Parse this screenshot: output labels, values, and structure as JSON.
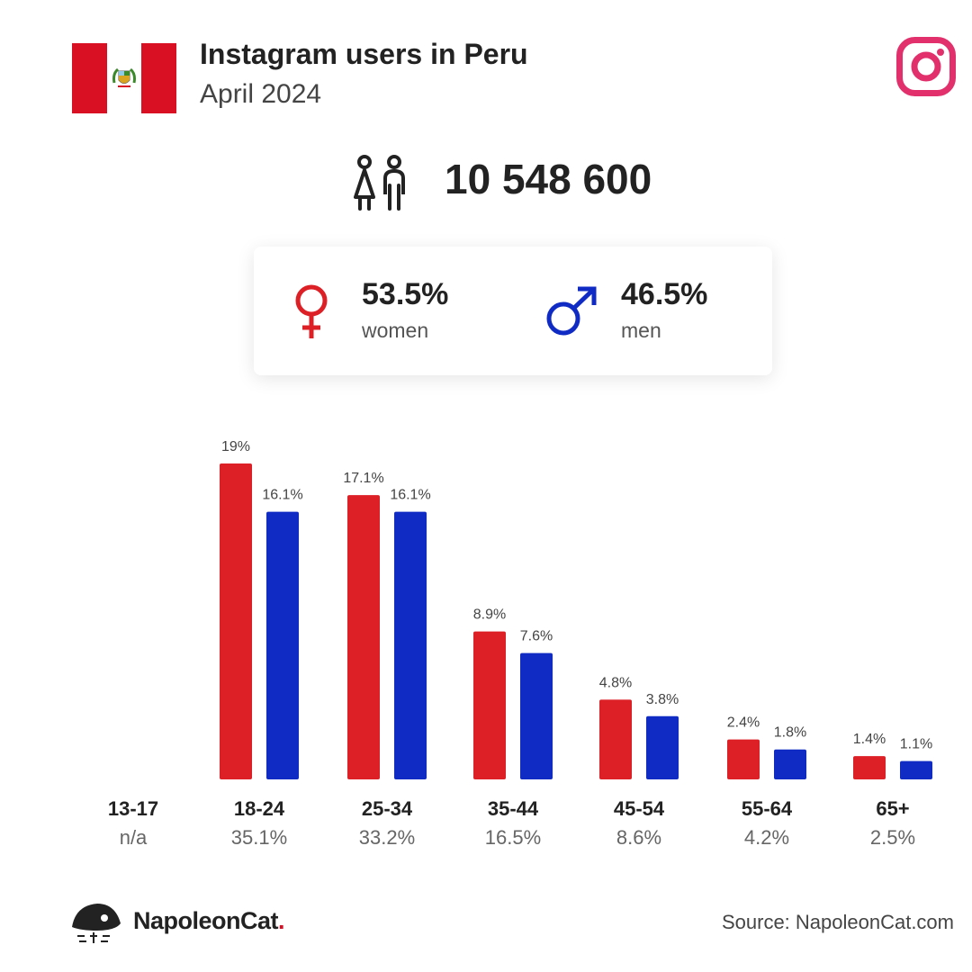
{
  "header": {
    "title": "Instagram users in Peru",
    "subtitle": "April 2024"
  },
  "total_users": "10 548 600",
  "gender": {
    "women": {
      "percent": "53.5%",
      "label": "women"
    },
    "men": {
      "percent": "46.5%",
      "label": "men"
    }
  },
  "colors": {
    "women": "#dd1f26",
    "men": "#0f2bc4",
    "instagram": "#e1306c",
    "peru_red": "#d91023"
  },
  "chart_data": {
    "type": "bar",
    "categories": [
      "13-17",
      "18-24",
      "25-34",
      "35-44",
      "45-54",
      "55-64",
      "65+"
    ],
    "category_totals": [
      "n/a",
      "35.1%",
      "33.2%",
      "16.5%",
      "8.6%",
      "4.2%",
      "2.5%"
    ],
    "series": [
      {
        "name": "women",
        "values": [
          null,
          19,
          17.1,
          8.9,
          4.8,
          2.4,
          1.4
        ],
        "labels": [
          "",
          "19%",
          "17.1%",
          "8.9%",
          "4.8%",
          "2.4%",
          "1.4%"
        ]
      },
      {
        "name": "men",
        "values": [
          null,
          16.1,
          16.1,
          7.6,
          3.8,
          1.8,
          1.1
        ],
        "labels": [
          "",
          "16.1%",
          "16.1%",
          "7.6%",
          "3.8%",
          "1.8%",
          "1.1%"
        ]
      }
    ],
    "unit": "%",
    "ylim": [
      0,
      19
    ],
    "grid": false,
    "legend": "none"
  },
  "footer": {
    "brand": "NapoleonCat",
    "brand_dot": ".",
    "source": "Source: NapoleonCat.com"
  },
  "icons": [
    "peru-flag-icon",
    "instagram-icon",
    "users-icon",
    "female-symbol-icon",
    "male-symbol-icon",
    "napoleoncat-logo-icon"
  ]
}
